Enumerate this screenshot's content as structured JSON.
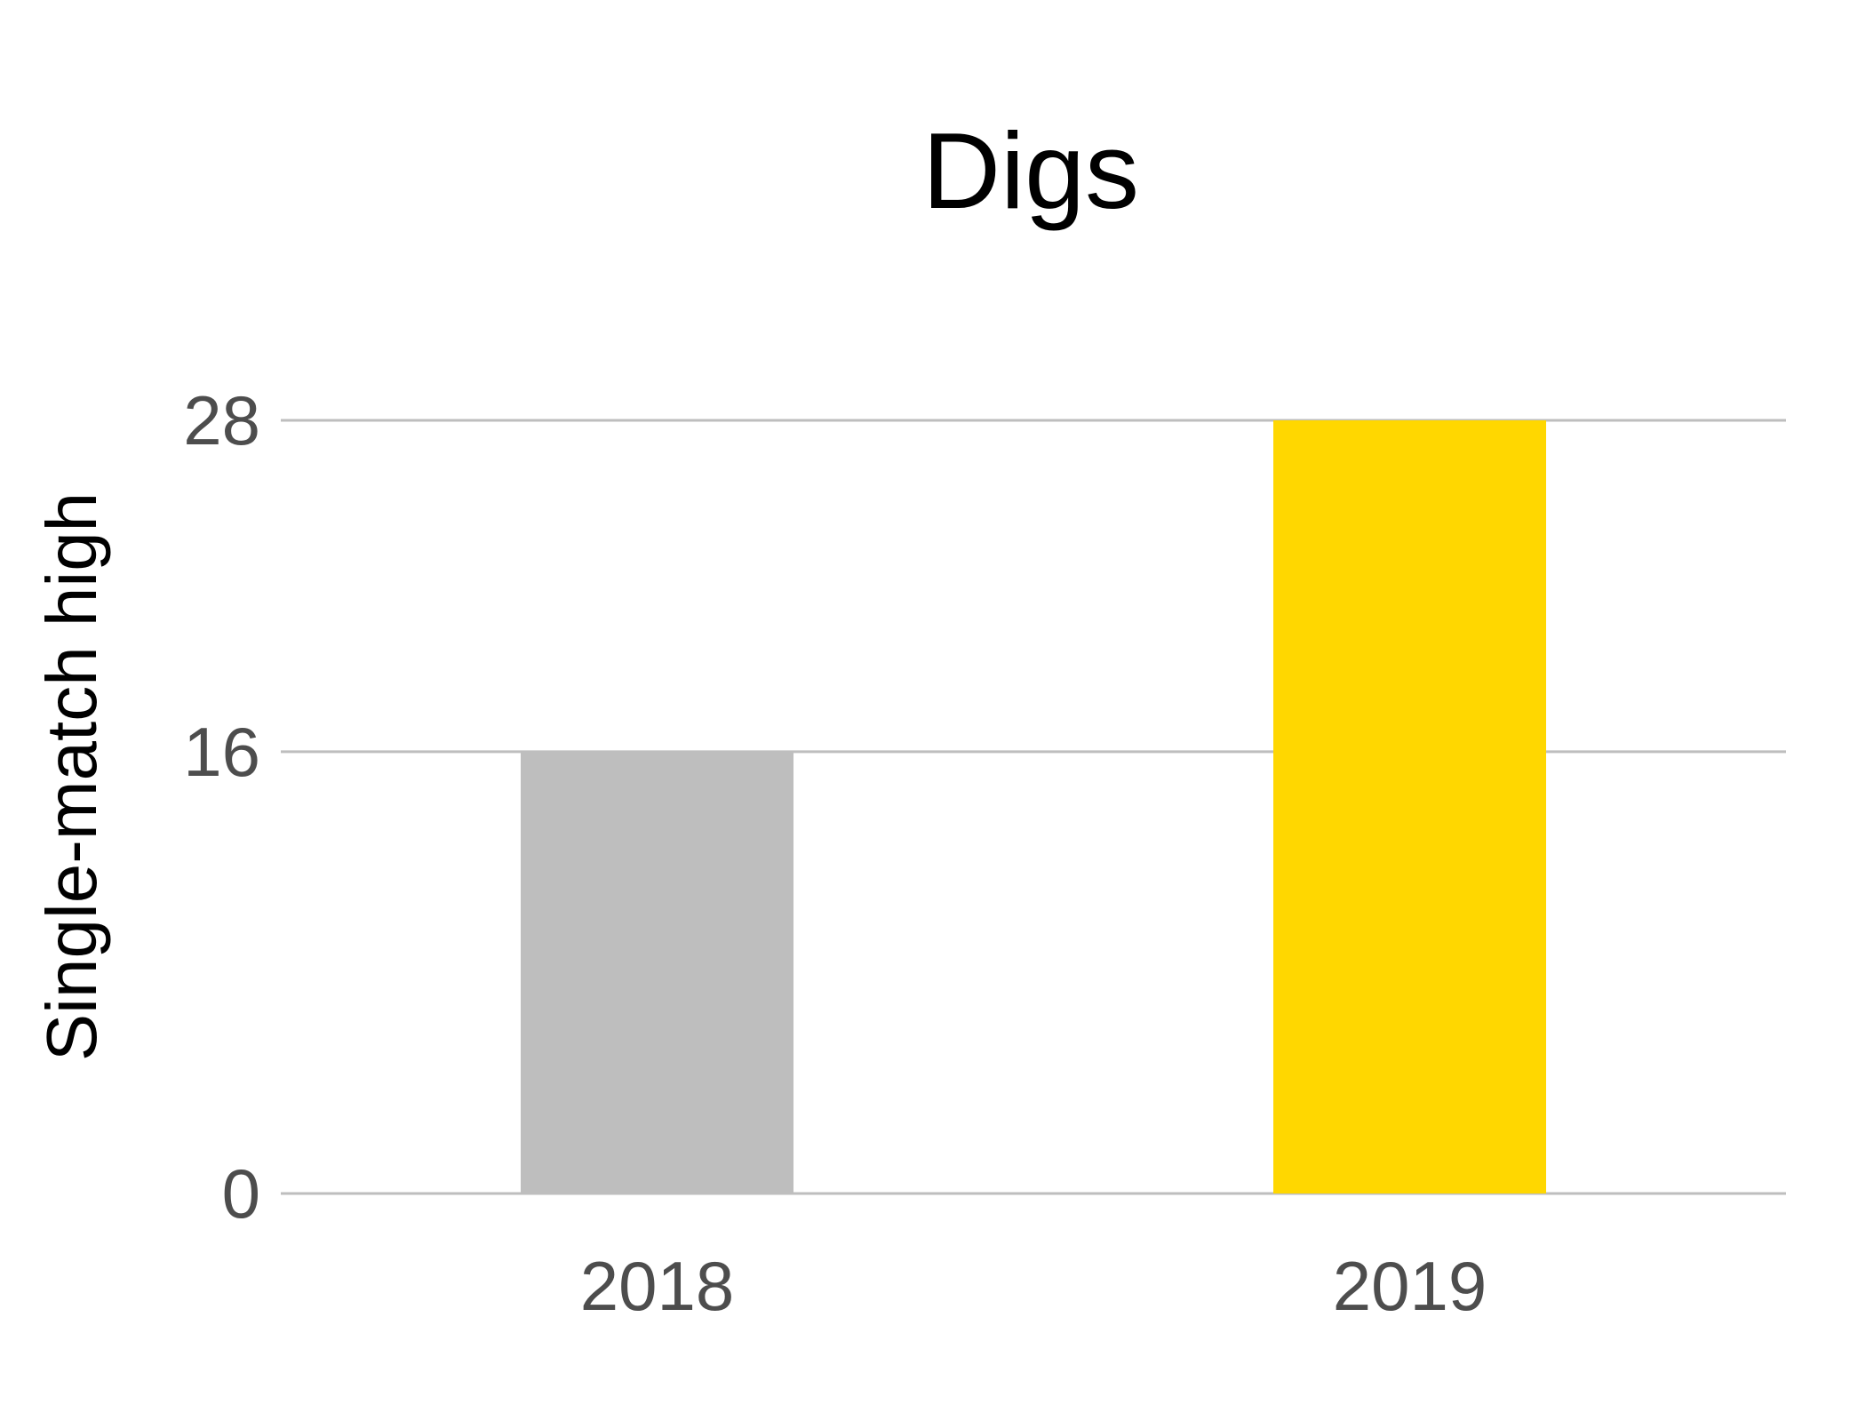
{
  "chart_data": {
    "type": "bar",
    "title": "Digs",
    "xlabel": "",
    "ylabel": "Single-match high",
    "categories": [
      "2018",
      "2019"
    ],
    "values": [
      16,
      28
    ],
    "bar_colors": [
      "#bebebe",
      "#ffd700"
    ],
    "yticks": [
      0,
      16,
      28
    ],
    "ylim": [
      0,
      28
    ],
    "grid": "horizontal",
    "gridline_color": "#bebebe"
  }
}
